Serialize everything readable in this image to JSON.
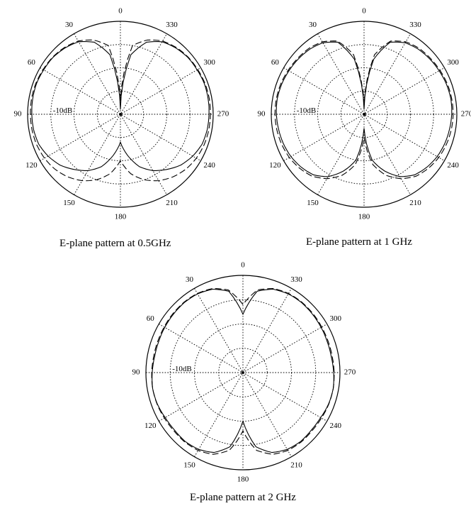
{
  "chart_data": [
    {
      "type": "polar-line",
      "caption": "E-plane pattern at 0.5GHz",
      "angle_ticks": [
        "0",
        "30",
        "60",
        "90",
        "120",
        "150",
        "180",
        "210",
        "240",
        "270",
        "300",
        "330"
      ],
      "radial_label": "-10dB",
      "r_range_db": [
        -40,
        0
      ],
      "ring_step_db": 10,
      "angles_deg": [
        0,
        10,
        20,
        30,
        40,
        50,
        60,
        70,
        80,
        90,
        100,
        110,
        120,
        130,
        140,
        150,
        160,
        170,
        180,
        190,
        200,
        210,
        220,
        230,
        240,
        250,
        260,
        270,
        280,
        290,
        300,
        310,
        320,
        330,
        340,
        350
      ],
      "series": [
        {
          "style": "solid",
          "values_db": [
            -38,
            -14,
            -7,
            -4,
            -2.8,
            -2,
            -1.8,
            -1.5,
            -1.6,
            -1.8,
            -2,
            -2.5,
            -4,
            -6,
            -9,
            -12,
            -16,
            -22,
            -28,
            -22,
            -16,
            -12,
            -9,
            -6,
            -4,
            -2.5,
            -2,
            -1.8,
            -1.6,
            -1.5,
            -1.8,
            -2,
            -2.8,
            -4,
            -7,
            -14
          ]
        },
        {
          "style": "dashed",
          "values_db": [
            -34,
            -10,
            -6,
            -3.6,
            -2.5,
            -1.8,
            -1.5,
            -1.2,
            -1.1,
            -1.2,
            -1.3,
            -1.6,
            -2.2,
            -3.2,
            -4.8,
            -7,
            -10,
            -14,
            -20,
            -14,
            -10,
            -7,
            -4.8,
            -3.2,
            -2.2,
            -1.6,
            -1.3,
            -1.2,
            -1.1,
            -1.2,
            -1.5,
            -1.8,
            -2.5,
            -3.6,
            -6,
            -10
          ]
        }
      ]
    },
    {
      "type": "polar-line",
      "caption": "E-plane pattern at 1 GHz",
      "angle_ticks": [
        "0",
        "30",
        "60",
        "90",
        "120",
        "150",
        "180",
        "210",
        "240",
        "270",
        "300",
        "330"
      ],
      "radial_label": "-10dB",
      "r_range_db": [
        -40,
        0
      ],
      "ring_step_db": 10,
      "angles_deg": [
        0,
        10,
        20,
        30,
        40,
        50,
        60,
        70,
        80,
        90,
        100,
        110,
        120,
        130,
        140,
        150,
        160,
        170,
        180,
        190,
        200,
        210,
        220,
        230,
        240,
        250,
        260,
        270,
        280,
        290,
        300,
        310,
        320,
        330,
        340,
        350
      ],
      "series": [
        {
          "style": "solid",
          "values_db": [
            -38,
            -16,
            -7,
            -4.5,
            -3.5,
            -3,
            -2.6,
            -2.2,
            -2,
            -2.2,
            -2.6,
            -3,
            -3.6,
            -4.6,
            -6,
            -9,
            -14,
            -20,
            -34,
            -20,
            -14,
            -9,
            -6,
            -4.6,
            -3.6,
            -3,
            -2.6,
            -2.2,
            -2,
            -2.2,
            -2.6,
            -3,
            -3.5,
            -4.5,
            -7,
            -16
          ]
        },
        {
          "style": "dashed",
          "values_db": [
            -36,
            -14,
            -6.5,
            -4,
            -3,
            -2.6,
            -2.2,
            -1.8,
            -1.6,
            -1.6,
            -1.8,
            -2.2,
            -2.8,
            -3.8,
            -5.2,
            -8,
            -12,
            -18,
            -30,
            -18,
            -12,
            -8,
            -5.2,
            -3.8,
            -2.8,
            -2.2,
            -1.8,
            -1.6,
            -1.6,
            -1.8,
            -2.2,
            -2.6,
            -3,
            -4,
            -6.5,
            -14
          ]
        }
      ]
    },
    {
      "type": "polar-line",
      "caption": "E-plane pattern at 2 GHz",
      "angle_ticks": [
        "0",
        "30",
        "60",
        "90",
        "120",
        "150",
        "180",
        "210",
        "240",
        "270",
        "300",
        "330"
      ],
      "radial_label": "-10dB",
      "r_range_db": [
        -40,
        0
      ],
      "ring_step_db": 10,
      "angles_deg": [
        0,
        10,
        20,
        30,
        40,
        50,
        60,
        70,
        80,
        90,
        100,
        110,
        120,
        130,
        140,
        150,
        160,
        170,
        180,
        190,
        200,
        210,
        220,
        230,
        240,
        250,
        260,
        270,
        280,
        290,
        300,
        310,
        320,
        330,
        340,
        350
      ],
      "series": [
        {
          "style": "solid",
          "values_db": [
            -16,
            -6,
            -3.5,
            -2.6,
            -2.4,
            -2.6,
            -2.8,
            -3,
            -3,
            -2.6,
            -2.2,
            -2.4,
            -3,
            -3.2,
            -3,
            -3.5,
            -5,
            -9,
            -20,
            -9,
            -5,
            -3.5,
            -3,
            -3.2,
            -3,
            -2.4,
            -2.2,
            -2.6,
            -3,
            -3,
            -2.8,
            -2.6,
            -2.4,
            -2.6,
            -3.5,
            -6
          ]
        },
        {
          "style": "dashed",
          "values_db": [
            -12,
            -5.5,
            -3.2,
            -2.4,
            -2.2,
            -2.3,
            -2.5,
            -2.6,
            -2.6,
            -2.4,
            -2.2,
            -2.3,
            -2.6,
            -2.8,
            -2.7,
            -3,
            -4.2,
            -7.5,
            -16,
            -7.5,
            -4.2,
            -3,
            -2.7,
            -2.8,
            -2.6,
            -2.3,
            -2.2,
            -2.4,
            -2.6,
            -2.6,
            -2.5,
            -2.3,
            -2.2,
            -2.4,
            -3.2,
            -5.5
          ]
        }
      ]
    }
  ]
}
